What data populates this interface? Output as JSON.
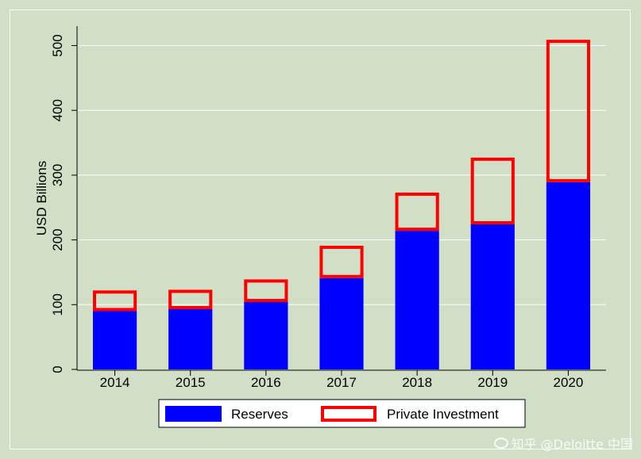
{
  "chart_data": {
    "type": "bar",
    "stacked": true,
    "categories": [
      "2014",
      "2015",
      "2016",
      "2017",
      "2018",
      "2019",
      "2020"
    ],
    "series": [
      {
        "name": "Reserves",
        "values": [
          90,
          93,
          104,
          141,
          214,
          224,
          289
        ],
        "fill": "#0000ff"
      },
      {
        "name": "Private Investment",
        "values": [
          32,
          30,
          35,
          50,
          59,
          103,
          220
        ],
        "fill": "none",
        "stroke": "#ff0000"
      }
    ],
    "title": "",
    "xlabel": "",
    "ylabel": "USD Billions",
    "ylim": [
      0,
      530
    ],
    "yticks": [
      0,
      100,
      200,
      300,
      400,
      500
    ],
    "grid": true,
    "legend_position": "bottom"
  },
  "colors": {
    "background": "#d0dfc6",
    "plot_background": "#d0dfc6",
    "gridline": "#ffffff",
    "reserves": "#0000ff",
    "private_investment": "#ff0000"
  },
  "watermark": {
    "text": "知乎 @Deloitte 中国"
  }
}
